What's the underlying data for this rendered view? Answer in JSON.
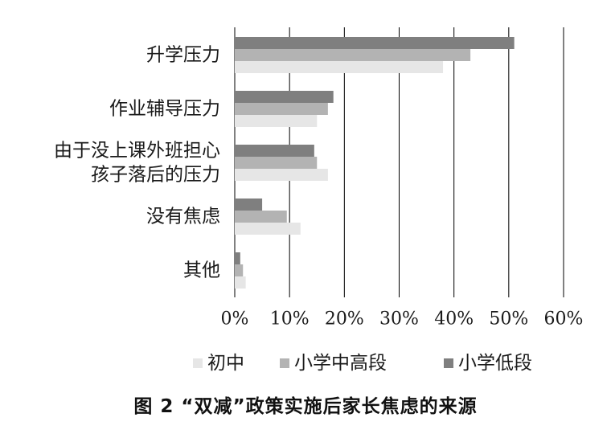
{
  "chart_data": {
    "type": "bar",
    "orientation": "horizontal",
    "categories": [
      [
        "升学压力"
      ],
      [
        "作业辅导压力"
      ],
      [
        "由于没上课外班担心",
        "孩子落后的压力"
      ],
      [
        "没有焦虑"
      ],
      [
        "其他"
      ]
    ],
    "series": [
      {
        "name": "小学低段",
        "color": "#7f7f7f",
        "values": [
          51,
          18,
          14.5,
          5,
          1
        ]
      },
      {
        "name": "小学中高段",
        "color": "#b3b3b3",
        "values": [
          43,
          17,
          15,
          9.5,
          1.5
        ]
      },
      {
        "name": "初中",
        "color": "#e6e6e6",
        "values": [
          38,
          15,
          17,
          12,
          2
        ]
      }
    ],
    "xlim": [
      0,
      60
    ],
    "x_ticks": [
      "0%",
      "10%",
      "20%",
      "30%",
      "40%",
      "50%",
      "60%"
    ],
    "grid": "vertical",
    "legend_position": "bottom",
    "legend_order": [
      "初中",
      "小学中高段",
      "小学低段"
    ]
  },
  "caption": "图 2  “双减”政策实施后家长焦虑的来源"
}
